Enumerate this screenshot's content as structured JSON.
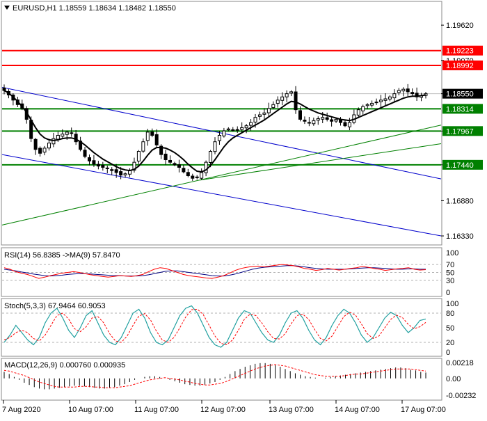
{
  "colors": {
    "candle": "#000000",
    "ma_line": "#000000",
    "resistance": "#ff0000",
    "support": "#008000",
    "channel": "#0000cc",
    "trend_green": "#008000",
    "rsi_line": "#ff0000",
    "rsi_ma": "#000080",
    "stoch_main": "#20a0a0",
    "stoch_signal": "#ff0000",
    "macd_hist": "#000000",
    "macd_signal": "#ff0000",
    "price_tag_red": "#ff0000",
    "price_tag_black": "#000000",
    "price_tag_green": "#008000"
  },
  "chart_data": [
    {
      "type": "candlestick",
      "title": "EURUSD,H1  1.18559 1.18634 1.18482 1.18550",
      "header": {
        "symbol": "EURUSD,H1",
        "open": "1.18559",
        "high": "1.18634",
        "low": "1.18482",
        "close": "1.18550"
      },
      "ylim": [
        1.162,
        1.1998
      ],
      "y_ticks": [
        "1.19620",
        "1.19070",
        "1.18550",
        "1.17967",
        "1.17440",
        "1.16880",
        "1.16330"
      ],
      "x_ticks": [
        "7 Aug 2020",
        "10 Aug 07:00",
        "11 Aug 07:00",
        "12 Aug 07:00",
        "13 Aug 07:00",
        "14 Aug 07:00",
        "17 Aug 07:00"
      ],
      "close_series": [
        1.186,
        1.1853,
        1.1845,
        1.1838,
        1.1832,
        1.1815,
        1.1785,
        1.1768,
        1.1762,
        1.177,
        1.1778,
        1.1785,
        1.179,
        1.1792,
        1.1795,
        1.1793,
        1.178,
        1.1768,
        1.1757,
        1.175,
        1.1745,
        1.1742,
        1.174,
        1.1738,
        1.1735,
        1.1732,
        1.1728,
        1.173,
        1.1735,
        1.1748,
        1.1765,
        1.178,
        1.1795,
        1.179,
        1.1775,
        1.176,
        1.1752,
        1.1748,
        1.1744,
        1.174,
        1.1733,
        1.1727,
        1.1723,
        1.1725,
        1.1732,
        1.1748,
        1.1765,
        1.178,
        1.179,
        1.1797,
        1.18,
        1.1798,
        1.1799,
        1.1802,
        1.1805,
        1.181,
        1.1818,
        1.1822,
        1.1825,
        1.1832,
        1.1838,
        1.1845,
        1.185,
        1.1855,
        1.1858,
        1.183,
        1.1815,
        1.1812,
        1.181,
        1.1813,
        1.1816,
        1.1818,
        1.1815,
        1.1812,
        1.1815,
        1.181,
        1.1805,
        1.181,
        1.1822,
        1.183,
        1.1835,
        1.1838,
        1.184,
        1.1842,
        1.1845,
        1.1847,
        1.185,
        1.1855,
        1.186,
        1.1862,
        1.1858,
        1.1855,
        1.185,
        1.1852,
        1.1855
      ],
      "ma_series": [
        1.186,
        1.1856,
        1.185,
        1.1843,
        1.1835,
        1.1826,
        1.1814,
        1.1802,
        1.1792,
        1.1786,
        1.1783,
        1.1782,
        1.1783,
        1.1785,
        1.1786,
        1.1786,
        1.1784,
        1.178,
        1.1775,
        1.1769,
        1.1763,
        1.1758,
        1.1753,
        1.1749,
        1.1745,
        1.1741,
        1.1738,
        1.1736,
        1.1735,
        1.1737,
        1.1742,
        1.175,
        1.1759,
        1.1767,
        1.1771,
        1.1771,
        1.177,
        1.1767,
        1.1763,
        1.1758,
        1.1752,
        1.1745,
        1.1739,
        1.1734,
        1.1733,
        1.1736,
        1.1743,
        1.1752,
        1.1762,
        1.1772,
        1.178,
        1.1786,
        1.179,
        1.1794,
        1.1798,
        1.1802,
        1.1806,
        1.181,
        1.1814,
        1.1819,
        1.1824,
        1.1829,
        1.1834,
        1.1839,
        1.1843,
        1.1842,
        1.1839,
        1.1835,
        1.1831,
        1.1828,
        1.1825,
        1.1823,
        1.1821,
        1.1819,
        1.1817,
        1.1815,
        1.1814,
        1.1813,
        1.1815,
        1.1818,
        1.1821,
        1.1824,
        1.1827,
        1.183,
        1.1833,
        1.1836,
        1.1839,
        1.1842,
        1.1845,
        1.1848,
        1.185,
        1.1851,
        1.1851,
        1.1852,
        1.1853
      ],
      "horizontal_levels": [
        {
          "label": "1.19223",
          "value": 1.19223,
          "color": "resistance"
        },
        {
          "label": "1.18992",
          "value": 1.18992,
          "color": "resistance"
        },
        {
          "label": "1.18314",
          "value": 1.18314,
          "color": "support"
        },
        {
          "label": "1.17967",
          "value": 1.17967,
          "color": "support"
        },
        {
          "label": "1.17440",
          "value": 1.1744,
          "color": "support"
        }
      ],
      "current_price": {
        "label": "1.18550",
        "value": 1.1855
      },
      "trendlines": [
        {
          "color": "channel",
          "x0": 0,
          "y0": 1.1865,
          "x1": 1,
          "y1": 1.1722
        },
        {
          "color": "channel",
          "x0": 0,
          "y0": 1.176,
          "x1": 1,
          "y1": 1.1633
        },
        {
          "color": "trend_green",
          "x0": 0,
          "y0": 1.165,
          "x1": 1,
          "y1": 1.1806
        },
        {
          "color": "trend_green",
          "x0": 0.45,
          "y0": 1.172,
          "x1": 1,
          "y1": 1.1777
        }
      ]
    },
    {
      "type": "line",
      "title": "RSI(14) 56.8385  ->MA(9) 57.8470",
      "ylim": [
        0,
        100
      ],
      "y_ticks": [
        "100",
        "70",
        "50",
        "30",
        "0"
      ],
      "levels": [
        70,
        50,
        30
      ],
      "rsi": [
        62,
        58,
        52,
        48,
        45,
        40,
        35,
        38,
        42,
        45,
        48,
        50,
        52,
        50,
        47,
        44,
        42,
        40,
        38,
        40,
        42,
        41,
        40,
        42,
        45,
        52,
        58,
        62,
        60,
        55,
        50,
        45,
        42,
        40,
        38,
        36,
        35,
        38,
        42,
        48,
        55,
        60,
        63,
        65,
        66,
        64,
        66,
        68,
        70,
        69,
        67,
        64,
        60,
        58,
        55,
        57,
        60,
        58,
        56,
        58,
        60,
        62,
        65,
        63,
        60,
        58,
        55,
        57,
        59,
        60,
        62,
        58,
        56,
        57
      ],
      "ma": [
        58,
        56,
        54,
        51,
        49,
        46,
        44,
        42,
        41,
        42,
        43,
        45,
        46,
        47,
        47,
        46,
        45,
        44,
        43,
        42,
        42,
        41,
        41,
        41,
        42,
        44,
        47,
        50,
        53,
        54,
        54,
        52,
        50,
        48,
        46,
        44,
        42,
        41,
        41,
        43,
        46,
        50,
        54,
        58,
        61,
        63,
        64,
        65,
        66,
        67,
        67,
        66,
        64,
        62,
        60,
        59,
        58,
        58,
        58,
        58,
        59,
        60,
        61,
        62,
        62,
        61,
        60,
        59,
        58,
        58,
        59,
        59,
        58,
        58
      ]
    },
    {
      "type": "line",
      "title": "Stoch(5,3,3) 67.9464 60.9053",
      "ylim": [
        0,
        100
      ],
      "y_ticks": [
        "100",
        "80",
        "50",
        "20",
        "0"
      ],
      "levels": [
        80,
        20
      ],
      "k": [
        20,
        35,
        55,
        40,
        25,
        15,
        30,
        60,
        80,
        90,
        70,
        45,
        30,
        50,
        75,
        85,
        60,
        35,
        20,
        15,
        30,
        55,
        80,
        88,
        70,
        40,
        20,
        15,
        25,
        50,
        75,
        90,
        95,
        80,
        55,
        30,
        15,
        10,
        20,
        45,
        70,
        85,
        80,
        60,
        40,
        25,
        20,
        35,
        60,
        80,
        85,
        70,
        45,
        25,
        15,
        30,
        55,
        75,
        88,
        80,
        60,
        35,
        20,
        30,
        50,
        70,
        82,
        75,
        55,
        40,
        50,
        65,
        68
      ],
      "d": [
        25,
        30,
        40,
        45,
        40,
        28,
        23,
        35,
        55,
        75,
        80,
        68,
        48,
        42,
        52,
        70,
        73,
        60,
        38,
        23,
        20,
        33,
        55,
        74,
        79,
        66,
        43,
        25,
        20,
        30,
        50,
        72,
        87,
        88,
        77,
        55,
        33,
        18,
        15,
        25,
        45,
        67,
        78,
        75,
        60,
        42,
        28,
        27,
        38,
        58,
        75,
        78,
        67,
        47,
        28,
        23,
        33,
        53,
        73,
        82,
        76,
        58,
        38,
        28,
        33,
        50,
        67,
        76,
        71,
        57,
        48,
        52,
        61
      ]
    },
    {
      "type": "bar",
      "title": "MACD(12,26,9) 0.000760 0.000935",
      "y_ticks": [
        "0.00218",
        "0.00",
        "-0.00232"
      ],
      "ylim": [
        -0.00232,
        0.00218
      ],
      "macd": [
        0.0009,
        0.0006,
        0.0002,
        -0.0002,
        -0.0006,
        -0.0009,
        -0.0012,
        -0.0014,
        -0.0015,
        -0.0015,
        -0.0014,
        -0.0013,
        -0.0012,
        -0.0011,
        -0.001,
        -0.001,
        -0.0011,
        -0.0012,
        -0.0013,
        -0.0014,
        -0.0014,
        -0.0013,
        -0.0012,
        -0.001,
        -0.0008,
        -0.0005,
        -0.0002,
        0.0,
        0.0002,
        0.0003,
        0.0003,
        0.0002,
        0.0,
        -0.0002,
        -0.0004,
        -0.0006,
        -0.0008,
        -0.0009,
        -0.001,
        -0.001,
        -0.0009,
        -0.0007,
        -0.0005,
        -0.0002,
        0.0002,
        0.0006,
        0.001,
        0.0013,
        0.0016,
        0.0018,
        0.002,
        0.0021,
        0.0021,
        0.002,
        0.0018,
        0.0016,
        0.0013,
        0.001,
        0.0007,
        0.0005,
        0.0003,
        0.0002,
        0.0001,
        0.0,
        0.0001,
        0.0002,
        0.0003,
        0.0004,
        0.0005,
        0.0006,
        0.0007,
        0.0008,
        0.0009,
        0.001,
        0.0011,
        0.0012,
        0.0013,
        0.0014,
        0.0015,
        0.0015,
        0.0014,
        0.0012,
        0.0011,
        0.0009,
        0.0008
      ],
      "signal": [
        0.0011,
        0.001,
        0.0008,
        0.0006,
        0.0004,
        0.0001,
        -0.0002,
        -0.0005,
        -0.0007,
        -0.0009,
        -0.0011,
        -0.0012,
        -0.0012,
        -0.0012,
        -0.0012,
        -0.0011,
        -0.0011,
        -0.0011,
        -0.0012,
        -0.0012,
        -0.0013,
        -0.0013,
        -0.0013,
        -0.0012,
        -0.0011,
        -0.001,
        -0.0008,
        -0.0006,
        -0.0004,
        -0.0002,
        -0.0001,
        0.0,
        0.0001,
        0.0,
        -0.0001,
        -0.0002,
        -0.0004,
        -0.0005,
        -0.0007,
        -0.0008,
        -0.0009,
        -0.0009,
        -0.0008,
        -0.0007,
        -0.0005,
        -0.0002,
        0.0001,
        0.0004,
        0.0007,
        0.001,
        0.0013,
        0.0015,
        0.0017,
        0.0018,
        0.0019,
        0.0018,
        0.0017,
        0.0015,
        0.0013,
        0.0011,
        0.0009,
        0.0007,
        0.0005,
        0.0004,
        0.0003,
        0.0003,
        0.0003,
        0.0003,
        0.0004,
        0.0005,
        0.0006,
        0.0006,
        0.0007,
        0.0008,
        0.0009,
        0.001,
        0.0011,
        0.0012,
        0.0013,
        0.0013,
        0.0013,
        0.0013,
        0.0012,
        0.0011,
        0.001
      ]
    }
  ]
}
